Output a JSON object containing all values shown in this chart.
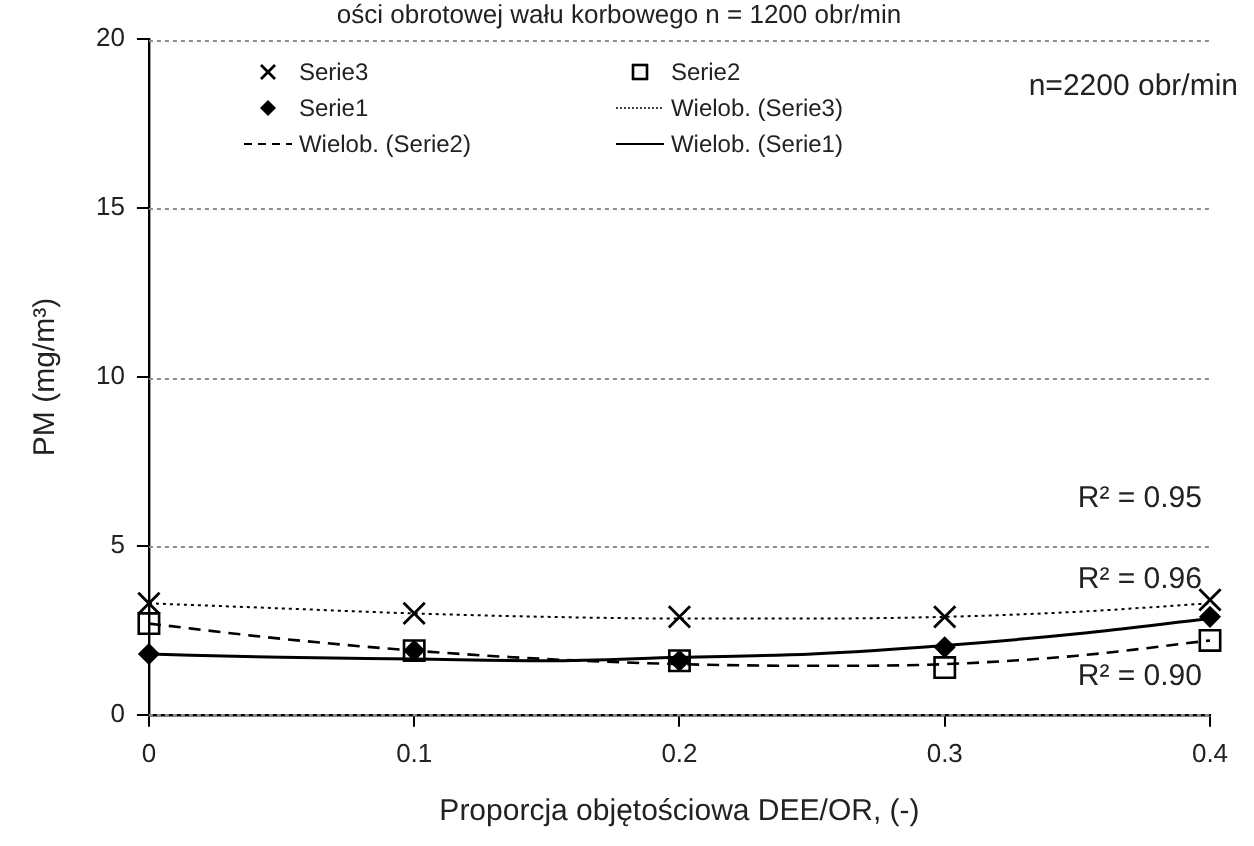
{
  "chart_data": {
    "type": "scatter",
    "title": "ości obrotowej wału korbowego n = 1200 obr/min",
    "xlabel": "Proporcja objętościowa DEE/OR, (-)",
    "ylabel": "PM (mg/m³)",
    "x": [
      0,
      0.1,
      0.2,
      0.3,
      0.4
    ],
    "series": [
      {
        "name": "Serie3",
        "color": "#000000",
        "marker": "cross",
        "values": [
          3.3,
          3.0,
          2.9,
          2.9,
          3.4
        ]
      },
      {
        "name": "Serie2",
        "color": "#000000",
        "marker": "square",
        "values": [
          2.7,
          1.9,
          1.6,
          1.4,
          2.2
        ]
      },
      {
        "name": "Serie1",
        "color": "#000000",
        "marker": "diamond",
        "values": [
          1.8,
          1.9,
          1.6,
          2.0,
          2.9
        ]
      },
      {
        "name": "Wielob. (Serie3)",
        "type": "line",
        "color": "#000000",
        "marker": "none",
        "line_style": "dotted",
        "x": [
          0,
          0.05,
          0.1,
          0.15,
          0.2,
          0.25,
          0.3,
          0.35,
          0.4
        ],
        "values": [
          3.3,
          3.15,
          3.0,
          2.9,
          2.85,
          2.85,
          2.9,
          3.05,
          3.3
        ]
      },
      {
        "name": "Wielob. (Serie2)",
        "type": "line",
        "color": "#000000",
        "marker": "none",
        "line_style": "dashed",
        "x": [
          0,
          0.05,
          0.1,
          0.15,
          0.2,
          0.25,
          0.3,
          0.35,
          0.4
        ],
        "values": [
          2.7,
          2.25,
          1.9,
          1.65,
          1.5,
          1.45,
          1.5,
          1.75,
          2.2
        ]
      },
      {
        "name": "Wielob. (Serie1)",
        "type": "line",
        "color": "#000000",
        "marker": "none",
        "line_style": "solid",
        "x": [
          0,
          0.05,
          0.1,
          0.15,
          0.2,
          0.25,
          0.3,
          0.35,
          0.4
        ],
        "values": [
          1.8,
          1.7,
          1.65,
          1.6,
          1.7,
          1.8,
          2.05,
          2.4,
          2.85
        ]
      }
    ],
    "xlim": [
      0,
      0.4
    ],
    "xticks": [
      0,
      0.1,
      0.2,
      0.3,
      0.4
    ],
    "ylim": [
      0,
      20
    ],
    "yticks": [
      0,
      5,
      10,
      15,
      20
    ],
    "grid": "y",
    "legend": "top left",
    "annotations": [
      "n=2200 obr/min",
      "R² = 0.95",
      "R² = 0.96",
      "R² = 0.90"
    ]
  }
}
